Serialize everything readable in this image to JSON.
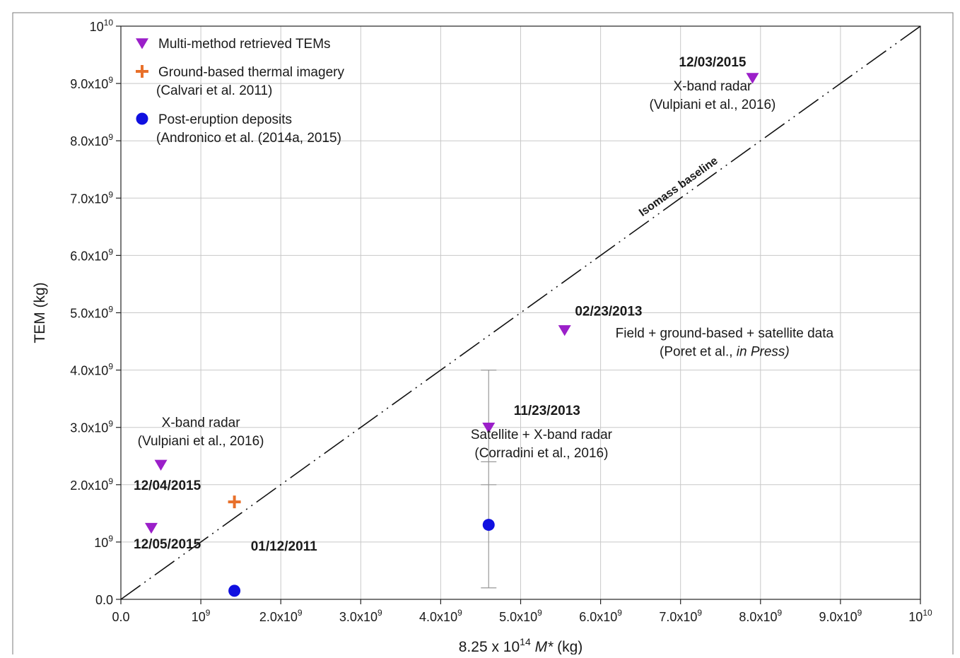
{
  "chart_data": {
    "type": "scatter",
    "xlabel": {
      "prefix": "8.25 x 10",
      "exp": "14",
      "var": "M*",
      "suffix": " (kg)"
    },
    "ylabel": "TEM (kg)",
    "xlim": [
      0,
      10000000000
    ],
    "ylim": [
      0,
      10000000000
    ],
    "grid": true,
    "legend_position": "top-left",
    "x_ticks": [
      {
        "value": 0,
        "mant": "0.0",
        "exp": ""
      },
      {
        "value": 1000000000,
        "mant": "10",
        "exp": "9"
      },
      {
        "value": 2000000000,
        "mant": "2.0x10",
        "exp": "9"
      },
      {
        "value": 3000000000,
        "mant": "3.0x10",
        "exp": "9"
      },
      {
        "value": 4000000000,
        "mant": "4.0x10",
        "exp": "9"
      },
      {
        "value": 5000000000,
        "mant": "5.0x10",
        "exp": "9"
      },
      {
        "value": 6000000000,
        "mant": "6.0x10",
        "exp": "9"
      },
      {
        "value": 7000000000,
        "mant": "7.0x10",
        "exp": "9"
      },
      {
        "value": 8000000000,
        "mant": "8.0x10",
        "exp": "9"
      },
      {
        "value": 9000000000,
        "mant": "9.0x10",
        "exp": "9"
      },
      {
        "value": 10000000000,
        "mant": "10",
        "exp": "10"
      }
    ],
    "y_ticks": [
      {
        "value": 0,
        "mant": "0.0",
        "exp": ""
      },
      {
        "value": 1000000000,
        "mant": "10",
        "exp": "9"
      },
      {
        "value": 2000000000,
        "mant": "2.0x10",
        "exp": "9"
      },
      {
        "value": 3000000000,
        "mant": "3.0x10",
        "exp": "9"
      },
      {
        "value": 4000000000,
        "mant": "4.0x10",
        "exp": "9"
      },
      {
        "value": 5000000000,
        "mant": "5.0x10",
        "exp": "9"
      },
      {
        "value": 6000000000,
        "mant": "6.0x10",
        "exp": "9"
      },
      {
        "value": 7000000000,
        "mant": "7.0x10",
        "exp": "9"
      },
      {
        "value": 8000000000,
        "mant": "8.0x10",
        "exp": "9"
      },
      {
        "value": 9000000000,
        "mant": "9.0x10",
        "exp": "9"
      },
      {
        "value": 10000000000,
        "mant": "10",
        "exp": "10"
      }
    ],
    "series": [
      {
        "name": "Multi-method retrieved TEMs",
        "marker": "triangle-down",
        "color": "#9b1fc9",
        "points": [
          {
            "x": 7900000000,
            "y": 9100000000
          },
          {
            "x": 5550000000,
            "y": 4700000000
          },
          {
            "x": 4600000000,
            "y": 3000000000
          },
          {
            "x": 500000000,
            "y": 2350000000
          },
          {
            "x": 380000000,
            "y": 1250000000
          }
        ]
      },
      {
        "name": "Ground-based thermal imagery",
        "name_line2": "(Calvari et al. 2011)",
        "marker": "plus",
        "color": "#e8702a",
        "points": [
          {
            "x": 1420000000,
            "y": 1700000000
          }
        ]
      },
      {
        "name": "Post-eruption deposits",
        "name_line2": "(Andronico et al. (2014a, 2015)",
        "marker": "circle",
        "color": "#1010e0",
        "points": [
          {
            "x": 1420000000,
            "y": 150000000
          },
          {
            "x": 4600000000,
            "y": 1300000000
          }
        ]
      }
    ],
    "error_bars": [
      {
        "x": 4600000000,
        "low": 200000000,
        "high": 4000000000,
        "ticks": [
          2000000000,
          2400000000
        ]
      }
    ],
    "baseline": {
      "label": "Isomass baseline",
      "from": [
        0,
        0
      ],
      "to": [
        10000000000,
        10000000000
      ]
    },
    "annotations": [
      {
        "x": 7400000000,
        "y": 9300000000,
        "anchor": "middle",
        "lines": [
          {
            "text": "12/03/2015",
            "bold": true
          },
          {
            "text": "X-band radar"
          },
          {
            "text": "(Vulpiani et al., 2016)"
          }
        ]
      },
      {
        "x": 6100000000,
        "y": 4950000000,
        "anchor": "middle",
        "lines": [
          {
            "text": "02/23/2013",
            "bold": true
          }
        ]
      },
      {
        "x": 7550000000,
        "y": 4570000000,
        "anchor": "middle",
        "lines": [
          {
            "text": "Field + ground-based + satellite data"
          },
          {
            "text": "(Poret et al., ",
            "italic_suffix": "in Press)"
          }
        ]
      },
      {
        "x": 5330000000,
        "y": 3220000000,
        "anchor": "middle",
        "lines": [
          {
            "text": "11/23/2013",
            "bold": true
          }
        ]
      },
      {
        "x": 5260000000,
        "y": 2800000000,
        "anchor": "middle",
        "lines": [
          {
            "text": "Satellite + X-band radar"
          },
          {
            "text": "(Corradini et al., 2016)"
          }
        ]
      },
      {
        "x": 1000000000,
        "y": 3010000000,
        "anchor": "middle",
        "lines": [
          {
            "text": "X-band radar"
          },
          {
            "text": "(Vulpiani et al., 2016)"
          }
        ]
      },
      {
        "x": 580000000,
        "y": 1910000000,
        "anchor": "middle",
        "lines": [
          {
            "text": "12/04/2015",
            "bold": true
          }
        ]
      },
      {
        "x": 580000000,
        "y": 890000000,
        "anchor": "middle",
        "lines": [
          {
            "text": "12/05/2015",
            "bold": true
          }
        ]
      },
      {
        "x": 2040000000,
        "y": 850000000,
        "anchor": "middle",
        "lines": [
          {
            "text": "01/12/2011",
            "bold": true
          }
        ]
      }
    ]
  }
}
